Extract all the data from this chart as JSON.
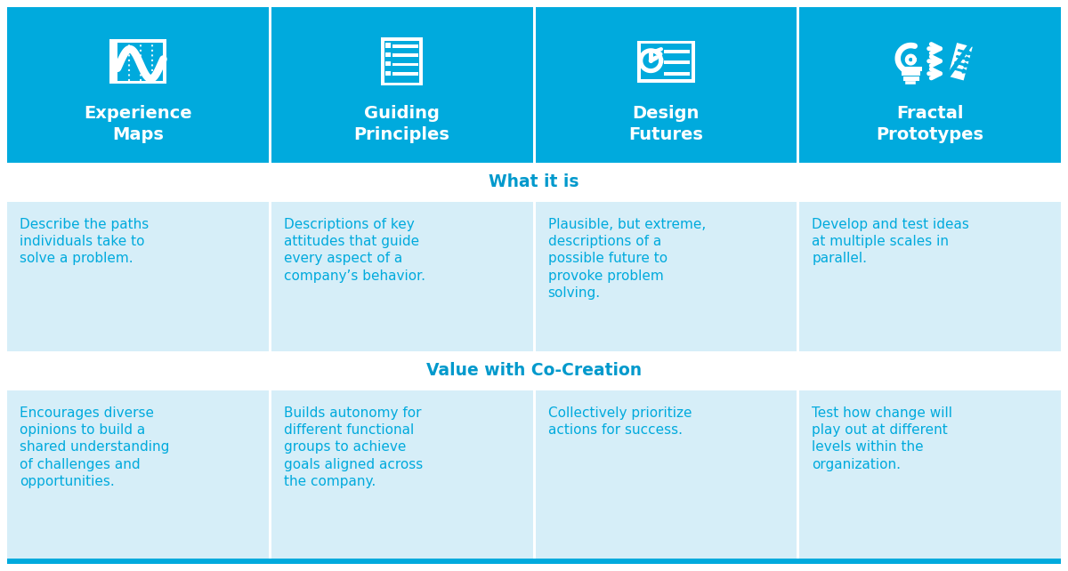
{
  "header_bg": "#00AADD",
  "header_text_color": "#FFFFFF",
  "section_header_bg": "#FFFFFF",
  "section_header_text_color": "#0099CC",
  "cell_bg": "#D6EEF8",
  "cell_text_color": "#00AADD",
  "outer_bg": "#FFFFFF",
  "bottom_bar_color": "#00AADD",
  "columns": [
    "Experience\nMaps",
    "Guiding\nPrinciples",
    "Design\nFutures",
    "Fractal\nPrototypes"
  ],
  "section1_title": "What it is",
  "section2_title": "Value with Co-Creation",
  "section1_cells": [
    "Describe the paths\nindividuals take to\nsolve a problem.",
    "Descriptions of key\nattitudes that guide\nevery aspect of a\ncompany’s behavior.",
    "Plausible, but extreme,\ndescriptions of a\npossible future to\nprovoke problem\nsolving.",
    "Develop and test ideas\nat multiple scales in\nparallel."
  ],
  "section2_cells": [
    "Encourages diverse\nopinions to build a\nshared understanding\nof challenges and\nopportunities.",
    "Builds autonomy for\ndifferent functional\ngroups to achieve\ngoals aligned across\nthe company.",
    "Collectively prioritize\nactions for success.",
    "Test how change will\nplay out at different\nlevels within the\norganization."
  ],
  "figsize": [
    12.0,
    6.42
  ],
  "dpi": 100
}
